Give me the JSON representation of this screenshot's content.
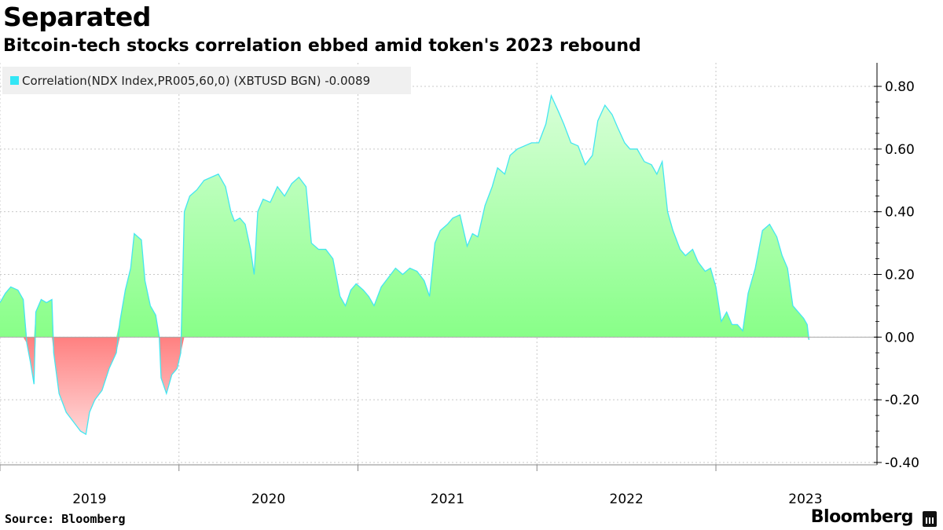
{
  "header": {
    "title": "Separated",
    "subtitle": "Bitcoin-tech stocks correlation ebbed amid token's 2023 rebound"
  },
  "legend": {
    "label": "Correlation(NDX Index,PR005,60,0) (XBTUSD BGN) -0.0089"
  },
  "footer": {
    "source": "Source: Bloomberg",
    "brand": "Bloomberg"
  },
  "colors": {
    "positive_fill": "#88ff88",
    "negative_fill": "#ff8080",
    "line": "#44e6f0",
    "legend_swatch": "#33e6f5"
  },
  "chart_data": {
    "type": "area",
    "ylim": [
      -0.4,
      0.85
    ],
    "y_ticks": [
      0.8,
      0.6,
      0.4,
      0.2,
      0.0,
      -0.2,
      -0.4
    ],
    "y_tick_labels": [
      "0.80",
      "0.60",
      "0.40",
      "0.20",
      "0.00",
      "-0.20",
      "-0.40"
    ],
    "x_range": [
      2019.0,
      2023.9
    ],
    "x_labels": [
      "2019",
      "2020",
      "2021",
      "2022",
      "2023"
    ],
    "x_label_positions": [
      2019.5,
      2020.5,
      2021.5,
      2022.5,
      2023.5
    ],
    "year_boundaries": [
      2019.0,
      2020.0,
      2021.0,
      2022.0,
      2023.0
    ],
    "grid": true,
    "legend_position": "top-left",
    "series": [
      {
        "name": "Correlation(NDX Index,PR005,60,0) (XBTUSD BGN) -0.0089",
        "points": [
          [
            2019.0,
            0.11
          ],
          [
            2019.03,
            0.14
          ],
          [
            2019.06,
            0.16
          ],
          [
            2019.1,
            0.15
          ],
          [
            2019.13,
            0.12
          ],
          [
            2019.15,
            -0.02
          ],
          [
            2019.17,
            -0.08
          ],
          [
            2019.19,
            -0.15
          ],
          [
            2019.2,
            0.08
          ],
          [
            2019.23,
            0.12
          ],
          [
            2019.26,
            0.11
          ],
          [
            2019.29,
            0.12
          ],
          [
            2019.3,
            -0.05
          ],
          [
            2019.33,
            -0.18
          ],
          [
            2019.37,
            -0.24
          ],
          [
            2019.41,
            -0.27
          ],
          [
            2019.45,
            -0.3
          ],
          [
            2019.48,
            -0.31
          ],
          [
            2019.5,
            -0.24
          ],
          [
            2019.53,
            -0.2
          ],
          [
            2019.57,
            -0.17
          ],
          [
            2019.61,
            -0.1
          ],
          [
            2019.65,
            -0.05
          ],
          [
            2019.67,
            0.05
          ],
          [
            2019.7,
            0.15
          ],
          [
            2019.73,
            0.22
          ],
          [
            2019.75,
            0.33
          ],
          [
            2019.79,
            0.31
          ],
          [
            2019.81,
            0.18
          ],
          [
            2019.84,
            0.1
          ],
          [
            2019.87,
            0.07
          ],
          [
            2019.89,
            0.0
          ],
          [
            2019.9,
            -0.13
          ],
          [
            2019.93,
            -0.18
          ],
          [
            2019.96,
            -0.12
          ],
          [
            2019.99,
            -0.1
          ],
          [
            2020.01,
            -0.05
          ],
          [
            2020.03,
            0.4
          ],
          [
            2020.06,
            0.45
          ],
          [
            2020.1,
            0.47
          ],
          [
            2020.14,
            0.5
          ],
          [
            2020.18,
            0.51
          ],
          [
            2020.22,
            0.52
          ],
          [
            2020.26,
            0.48
          ],
          [
            2020.29,
            0.4
          ],
          [
            2020.31,
            0.37
          ],
          [
            2020.34,
            0.38
          ],
          [
            2020.37,
            0.36
          ],
          [
            2020.4,
            0.28
          ],
          [
            2020.42,
            0.2
          ],
          [
            2020.44,
            0.4
          ],
          [
            2020.47,
            0.44
          ],
          [
            2020.51,
            0.43
          ],
          [
            2020.55,
            0.48
          ],
          [
            2020.59,
            0.45
          ],
          [
            2020.63,
            0.49
          ],
          [
            2020.67,
            0.51
          ],
          [
            2020.71,
            0.48
          ],
          [
            2020.74,
            0.3
          ],
          [
            2020.78,
            0.28
          ],
          [
            2020.82,
            0.28
          ],
          [
            2020.86,
            0.25
          ],
          [
            2020.9,
            0.13
          ],
          [
            2020.93,
            0.1
          ],
          [
            2020.96,
            0.15
          ],
          [
            2020.99,
            0.17
          ],
          [
            2021.03,
            0.15
          ],
          [
            2021.06,
            0.13
          ],
          [
            2021.09,
            0.1
          ],
          [
            2021.13,
            0.16
          ],
          [
            2021.17,
            0.19
          ],
          [
            2021.21,
            0.22
          ],
          [
            2021.25,
            0.2
          ],
          [
            2021.29,
            0.22
          ],
          [
            2021.33,
            0.21
          ],
          [
            2021.37,
            0.18
          ],
          [
            2021.4,
            0.13
          ],
          [
            2021.43,
            0.3
          ],
          [
            2021.46,
            0.34
          ],
          [
            2021.5,
            0.36
          ],
          [
            2021.53,
            0.38
          ],
          [
            2021.57,
            0.39
          ],
          [
            2021.61,
            0.29
          ],
          [
            2021.64,
            0.33
          ],
          [
            2021.67,
            0.32
          ],
          [
            2021.71,
            0.42
          ],
          [
            2021.75,
            0.48
          ],
          [
            2021.78,
            0.54
          ],
          [
            2021.82,
            0.52
          ],
          [
            2021.85,
            0.58
          ],
          [
            2021.89,
            0.6
          ],
          [
            2021.93,
            0.61
          ],
          [
            2021.97,
            0.62
          ],
          [
            2022.01,
            0.62
          ],
          [
            2022.05,
            0.68
          ],
          [
            2022.08,
            0.77
          ],
          [
            2022.12,
            0.72
          ],
          [
            2022.15,
            0.68
          ],
          [
            2022.19,
            0.62
          ],
          [
            2022.23,
            0.61
          ],
          [
            2022.27,
            0.55
          ],
          [
            2022.31,
            0.58
          ],
          [
            2022.34,
            0.69
          ],
          [
            2022.38,
            0.74
          ],
          [
            2022.42,
            0.71
          ],
          [
            2022.45,
            0.67
          ],
          [
            2022.49,
            0.62
          ],
          [
            2022.52,
            0.6
          ],
          [
            2022.56,
            0.6
          ],
          [
            2022.6,
            0.56
          ],
          [
            2022.64,
            0.55
          ],
          [
            2022.67,
            0.52
          ],
          [
            2022.7,
            0.56
          ],
          [
            2022.73,
            0.4
          ],
          [
            2022.76,
            0.34
          ],
          [
            2022.8,
            0.28
          ],
          [
            2022.83,
            0.26
          ],
          [
            2022.87,
            0.28
          ],
          [
            2022.9,
            0.24
          ],
          [
            2022.94,
            0.21
          ],
          [
            2022.97,
            0.22
          ],
          [
            2023.0,
            0.16
          ],
          [
            2023.03,
            0.05
          ],
          [
            2023.06,
            0.08
          ],
          [
            2023.09,
            0.04
          ],
          [
            2023.12,
            0.04
          ],
          [
            2023.15,
            0.02
          ],
          [
            2023.18,
            0.14
          ],
          [
            2023.22,
            0.22
          ],
          [
            2023.26,
            0.34
          ],
          [
            2023.3,
            0.36
          ],
          [
            2023.34,
            0.32
          ],
          [
            2023.37,
            0.26
          ],
          [
            2023.4,
            0.22
          ],
          [
            2023.43,
            0.1
          ],
          [
            2023.46,
            0.08
          ],
          [
            2023.49,
            0.06
          ],
          [
            2023.51,
            0.04
          ],
          [
            2023.52,
            -0.0089
          ]
        ]
      }
    ]
  }
}
